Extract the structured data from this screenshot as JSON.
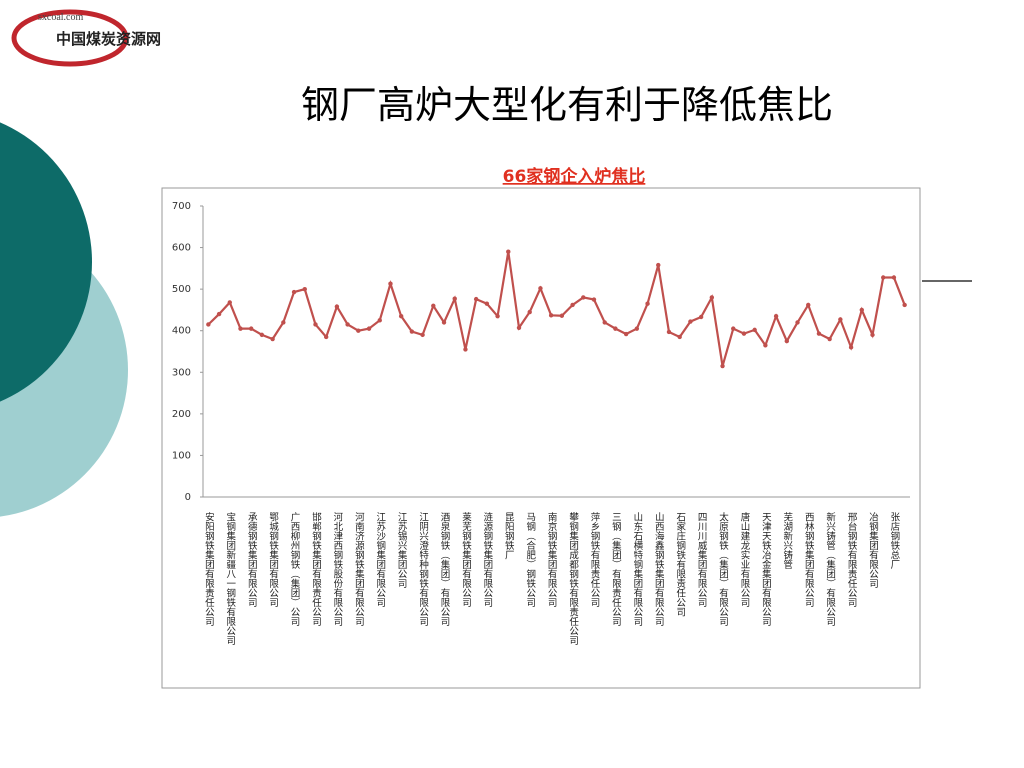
{
  "logo": {
    "url": "sxcoal.com",
    "name": "中国煤炭资源网"
  },
  "slide_title": "钢厂高炉大型化有利于降低焦比",
  "chart_data": {
    "type": "line",
    "title": "66家钢企入炉焦比",
    "color": "#c0504d",
    "categories": [
      "安阳钢铁集团有限责任公司",
      null,
      "宝钢集团新疆八一钢铁有限公司",
      null,
      "承德钢铁集团有限公司",
      null,
      "鄂城钢铁集团有限公司",
      null,
      "广西柳州钢铁（集团）公司",
      null,
      "邯郸钢铁集团有限责任公司",
      null,
      "河北津西钢铁股份有限公司",
      null,
      "河南济源钢铁集团有限公司",
      null,
      "江苏沙钢集团有限公司",
      null,
      "江苏锡兴集团公司",
      null,
      "江阴兴澄特种钢铁有限公司",
      null,
      "酒泉钢铁（集团）有限公司",
      null,
      "莱芜钢铁集团有限公司",
      null,
      "涟源钢铁集团有限公司",
      null,
      "昆阳钢铁厂",
      null,
      "马钢（合肥）钢铁公司",
      null,
      "南京钢铁集团有限公司",
      null,
      "攀钢集团成都钢铁有限责任公司",
      null,
      "萍乡钢铁有限责任公司",
      null,
      "三钢（集团）有限责任公司",
      null,
      "山东石横特钢集团有限公司",
      null,
      "山西海鑫钢铁集团有限公司",
      null,
      "石家庄钢铁有限责任公司",
      null,
      "四川川威集团有限公司",
      null,
      "太原钢铁（集团）有限公司",
      null,
      "唐山建龙实业有限公司",
      null,
      "天津天铁冶金集团有限公司",
      null,
      "芜湖新兴铸管",
      null,
      "西林钢铁集团有限公司",
      null,
      "新兴铸管（集团）有限公司",
      null,
      "邢台钢铁有限责任公司",
      null,
      "冶钢集团有限公司",
      null,
      "张店钢铁总厂",
      null
    ],
    "values": [
      415,
      440,
      468,
      405,
      405,
      390,
      380,
      420,
      493,
      500,
      415,
      385,
      458,
      415,
      400,
      405,
      425,
      513,
      435,
      398,
      390,
      460,
      420,
      477,
      355,
      476,
      465,
      435,
      590,
      407,
      445,
      502,
      437,
      436,
      462,
      480,
      475,
      420,
      405,
      392,
      405,
      465,
      558,
      397,
      385,
      422,
      433,
      480,
      315,
      405,
      393,
      402,
      365,
      435,
      375,
      420,
      462,
      393,
      380,
      427,
      360,
      450,
      390,
      528,
      528,
      462
    ],
    "ylim": [
      0,
      700
    ],
    "yticks": [
      0,
      100,
      200,
      300,
      400,
      500,
      600,
      700
    ],
    "grid": false
  }
}
